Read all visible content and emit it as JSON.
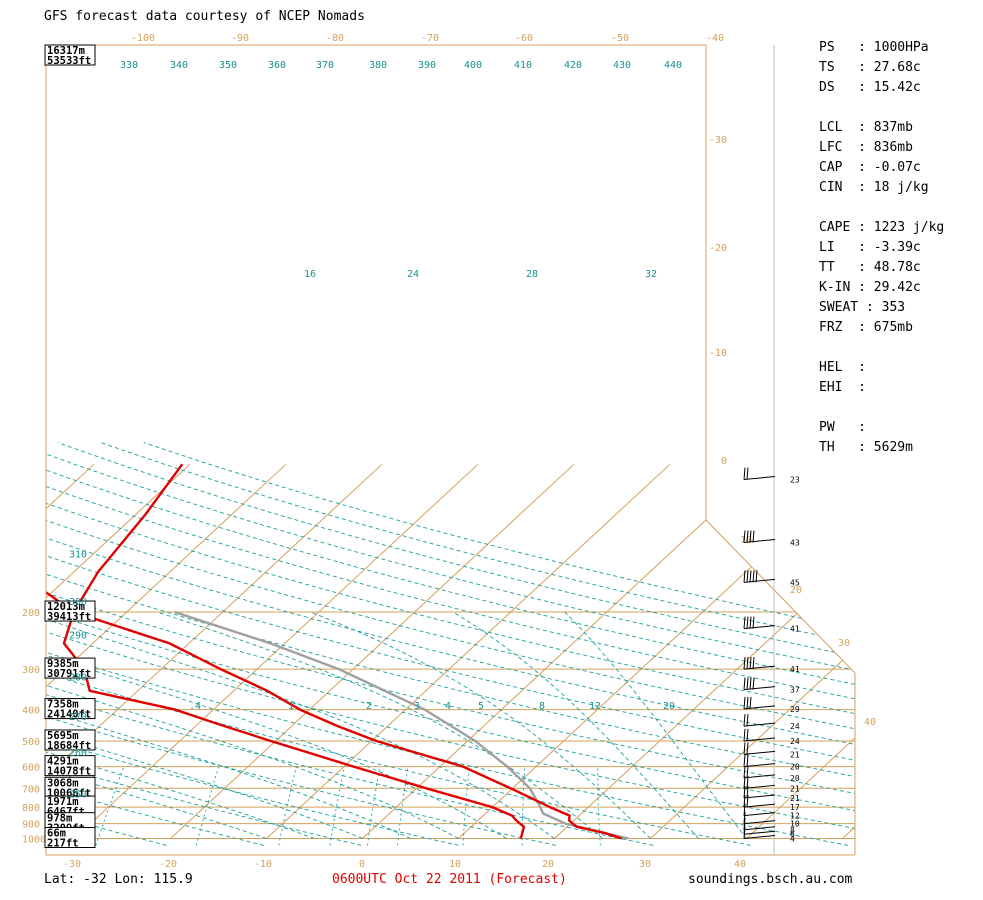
{
  "header": {
    "title": "GFS forecast data courtesy of NCEP Nomads"
  },
  "footer": {
    "location": "Lat: -32  Lon: 115.9",
    "valid_time": "0600UTC Oct 22 2011 (Forecast)",
    "website": "soundings.bsch.au.com"
  },
  "stats": [
    {
      "label": "PS",
      "value": "1000HPa"
    },
    {
      "label": "TS",
      "value": "27.68c"
    },
    {
      "label": "DS",
      "value": "15.42c"
    },
    null,
    {
      "label": "LCL",
      "value": "837mb"
    },
    {
      "label": "LFC",
      "value": "836mb"
    },
    {
      "label": "CAP",
      "value": "-0.07c"
    },
    {
      "label": "CIN",
      "value": "18 j/kg"
    },
    null,
    {
      "label": "CAPE",
      "value": "1223 j/kg"
    },
    {
      "label": "LI",
      "value": "-3.39c"
    },
    {
      "label": "TT",
      "value": "48.78c"
    },
    {
      "label": "K-IN",
      "value": "29.42c"
    },
    {
      "label": "SWEAT",
      "value": "353"
    },
    {
      "label": "FRZ",
      "value": "675mb"
    },
    null,
    {
      "label": "HEL",
      "value": ""
    },
    {
      "label": "EHI",
      "value": ""
    },
    null,
    {
      "label": "PW",
      "value": ""
    },
    {
      "label": "TH",
      "value": "5629m"
    }
  ],
  "colors": {
    "frame": "#d4a05a",
    "dry_adiabat": "#1aa0a0",
    "temperature": "#e00000",
    "dewpoint": "#e00000",
    "parcel": "#a0a0a0",
    "text_teal": "#1a9090"
  },
  "chart_data": {
    "type": "line",
    "title": "",
    "xlabel": "",
    "ylabel": "",
    "x_tick_labels": [
      "-30",
      "-20",
      "-10",
      "0",
      "10",
      "20",
      "30",
      "40"
    ],
    "top_tick_labels": [
      "-100",
      "-90",
      "-80",
      "-70",
      "-60",
      "-50",
      "-40"
    ],
    "right_tick_labels": [
      "-30",
      "-20",
      "-10",
      "0",
      "10",
      "20",
      "30",
      "40"
    ],
    "pressure_levels": [
      {
        "p": "200",
        "height_m": "12013m",
        "height_ft": "39413ft"
      },
      {
        "p": "300",
        "height_m": "9385m",
        "height_ft": "30791ft"
      },
      {
        "p": "400",
        "height_m": "7358m",
        "height_ft": "24140ft"
      },
      {
        "p": "500",
        "height_m": "5695m",
        "height_ft": "18684ft"
      },
      {
        "p": "600",
        "height_m": "4291m",
        "height_ft": "14078ft"
      },
      {
        "p": "700",
        "height_m": "3068m",
        "height_ft": "10066ft"
      },
      {
        "p": "800",
        "height_m": "1971m",
        "height_ft": "6467ft"
      },
      {
        "p": "900",
        "height_m": "978m",
        "height_ft": "3209ft"
      },
      {
        "p": "1000",
        "height_m": "66m",
        "height_ft": "217ft"
      }
    ],
    "top_height": {
      "height_m": "16317m",
      "height_ft": "53533ft"
    },
    "theta_e_labels": [
      "330",
      "340",
      "350",
      "360",
      "370",
      "380",
      "390",
      "400",
      "410",
      "420",
      "430",
      "440"
    ],
    "theta_labels": [
      {
        "text": "310",
        "p": 132
      },
      {
        "text": "300",
        "p": 185
      },
      {
        "text": "290",
        "p": 235
      },
      {
        "text": "280",
        "p": 316
      },
      {
        "text": "270",
        "p": 418
      },
      {
        "text": "260",
        "p": 540
      },
      {
        "text": "250",
        "p": 726
      }
    ],
    "mixing_ratio_labels": [
      "16",
      "24",
      "28",
      "32"
    ],
    "mixing_ratio_low_labels": [
      ".4",
      "1",
      "2",
      "3",
      "4",
      "5",
      "8",
      "12",
      "20"
    ],
    "series": [
      {
        "name": "Temperature",
        "points": [
          [
            1000,
            27.0
          ],
          [
            960,
            24.5
          ],
          [
            920,
            21.0
          ],
          [
            880,
            19.5
          ],
          [
            850,
            19.0
          ],
          [
            800,
            16.0
          ],
          [
            700,
            9.8
          ],
          [
            600,
            2.4
          ],
          [
            500,
            -9.5
          ],
          [
            450,
            -15.2
          ],
          [
            400,
            -21.0
          ],
          [
            350,
            -26.5
          ],
          [
            300,
            -33.8
          ],
          [
            250,
            -42.0
          ],
          [
            200,
            -55.5
          ],
          [
            150,
            -57.5
          ],
          [
            100,
            -59.0
          ],
          [
            70,
            -60.8
          ]
        ]
      },
      {
        "name": "Dewpoint",
        "points": [
          [
            1000,
            16.5
          ],
          [
            960,
            16.0
          ],
          [
            920,
            15.5
          ],
          [
            880,
            14.0
          ],
          [
            850,
            13.0
          ],
          [
            800,
            10.0
          ],
          [
            700,
            1.0
          ],
          [
            600,
            -9.0
          ],
          [
            500,
            -20.5
          ],
          [
            450,
            -27.0
          ],
          [
            400,
            -34.0
          ],
          [
            350,
            -45.0
          ],
          [
            300,
            -48.0
          ],
          [
            250,
            -53.0
          ],
          [
            200,
            -55.5
          ],
          [
            150,
            -66.0
          ],
          [
            120,
            -74.0
          ],
          [
            100,
            -79.0
          ],
          [
            85,
            -82.0
          ],
          [
            70,
            -84.0
          ]
        ]
      },
      {
        "name": "Parcel",
        "points": [
          [
            1000,
            27.7
          ],
          [
            900,
            19.5
          ],
          [
            837,
            16.0
          ],
          [
            800,
            15.0
          ],
          [
            700,
            11.8
          ],
          [
            600,
            7.0
          ],
          [
            500,
            0.8
          ],
          [
            400,
            -8.0
          ],
          [
            300,
            -21.5
          ],
          [
            250,
            -31.5
          ],
          [
            200,
            -45.0
          ]
        ]
      }
    ],
    "wind_barbs": [
      {
        "p": 78,
        "speed_label": "23"
      },
      {
        "p": 122,
        "speed_label": "43"
      },
      {
        "p": 162,
        "speed_label": "45"
      },
      {
        "p": 225,
        "speed_label": "41"
      },
      {
        "p": 300,
        "speed_label": "41"
      },
      {
        "p": 347,
        "speed_label": "37"
      },
      {
        "p": 398,
        "speed_label": "29"
      },
      {
        "p": 450,
        "speed_label": "24"
      },
      {
        "p": 500,
        "speed_label": "24"
      },
      {
        "p": 550,
        "speed_label": "21"
      },
      {
        "p": 600,
        "speed_label": "20"
      },
      {
        "p": 650,
        "speed_label": "20"
      },
      {
        "p": 700,
        "speed_label": "21"
      },
      {
        "p": 750,
        "speed_label": "21"
      },
      {
        "p": 800,
        "speed_label": "17"
      },
      {
        "p": 850,
        "speed_label": "12"
      },
      {
        "p": 900,
        "speed_label": "10"
      },
      {
        "p": 940,
        "speed_label": "8"
      },
      {
        "p": 970,
        "speed_label": "6"
      },
      {
        "p": 1000,
        "speed_label": "4"
      }
    ]
  }
}
